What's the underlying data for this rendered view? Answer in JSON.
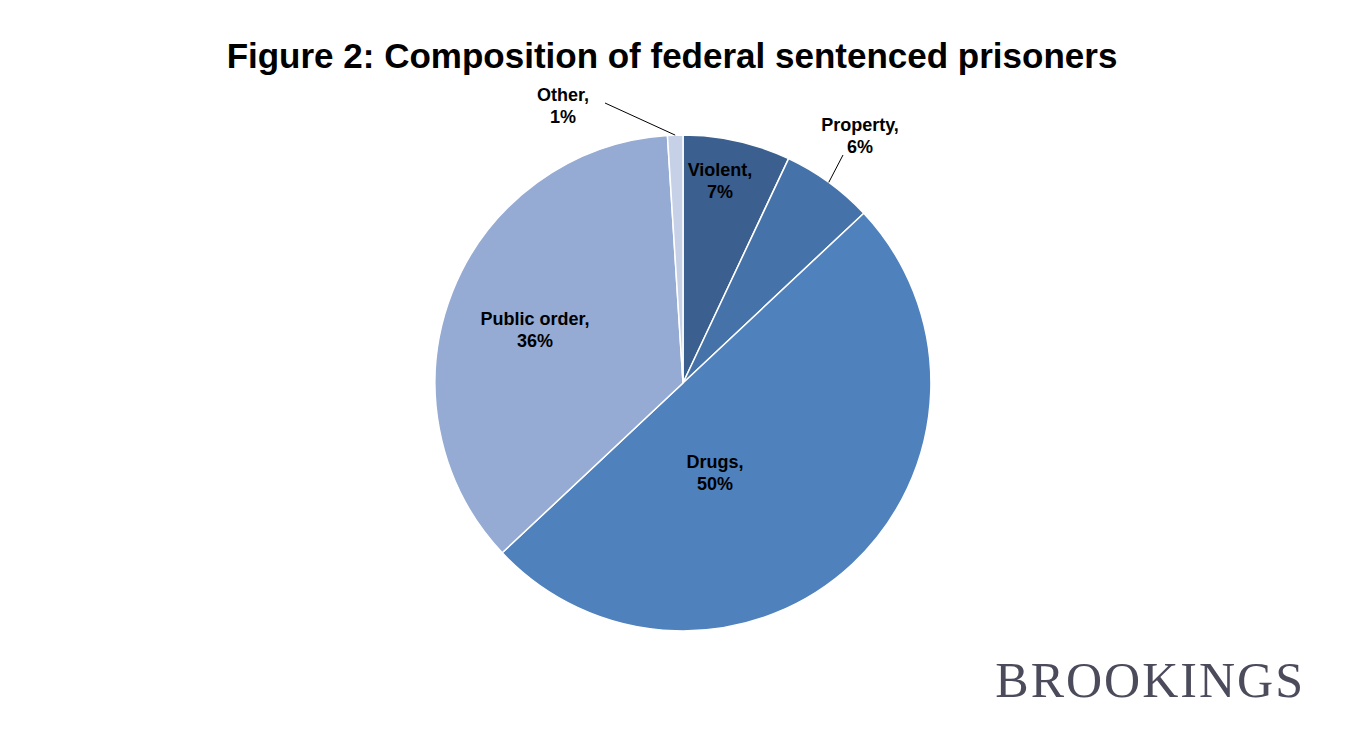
{
  "chart_data": {
    "type": "pie",
    "title": "Figure 2: Composition of federal sentenced prisoners",
    "categories": [
      "Violent,",
      "Property,",
      "Drugs,",
      "Public order,",
      "Other,"
    ],
    "values": [
      7,
      6,
      50,
      36,
      1
    ],
    "value_labels": [
      "7%",
      "6%",
      "50%",
      "36%",
      "1%"
    ],
    "colors": [
      "#3b5f8f",
      "#4572a8",
      "#4f81bd",
      "#95abd3",
      "#c6d1e7"
    ],
    "data_labels": true
  },
  "logo": "BROOKINGS"
}
